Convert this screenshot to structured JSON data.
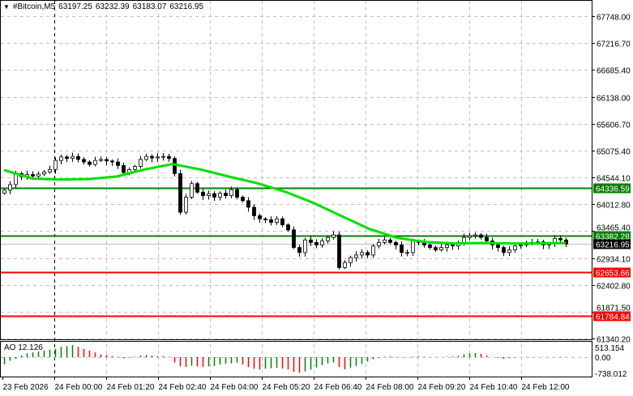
{
  "header": {
    "symbol": "#Bitcoin,M5",
    "open": "63197.25",
    "high": "63232.39",
    "low": "63183.07",
    "close": "63216.95",
    "menu_icon": "triangle-down-icon"
  },
  "indicator": {
    "label": "AO 12.126",
    "axis_labels": [
      "513.154",
      "0.00",
      "-738.012"
    ]
  },
  "colors": {
    "bull_body": "#ffffff",
    "bear_body": "#000000",
    "ma": "#00e000",
    "level_green": "#008000",
    "level_red": "#ff0000",
    "ao_up": "#008000",
    "ao_down": "#ff0000",
    "grid": "#c0c0c0"
  },
  "chart_data": {
    "type": "candlestick",
    "title": "#Bitcoin,M5",
    "ylim": [
      61340.2,
      67748.0
    ],
    "y_ticks": [
      "67748.00",
      "67216.70",
      "66685.40",
      "66138.00",
      "65606.70",
      "65075.40",
      "64544.10",
      "64012.80",
      "63465.40",
      "62934.10",
      "62402.80",
      "61871.50",
      "61340.20"
    ],
    "x_ticks": [
      "23 Feb 2026",
      "24 Feb 00:00",
      "24 Feb 01:20",
      "24 Feb 02:40",
      "24 Feb 04:00",
      "24 Feb 05:20",
      "24 Feb 06:40",
      "24 Feb 08:00",
      "24 Feb 09:20",
      "24 Feb 10:40",
      "24 Feb 12:00"
    ],
    "grid": true,
    "closes": [
      64290,
      64400,
      64620,
      64560,
      64600,
      64570,
      64610,
      64650,
      64700,
      64880,
      64950,
      64920,
      64960,
      64900,
      64850,
      64800,
      64880,
      64900,
      64870,
      64850,
      64780,
      64640,
      64700,
      64760,
      64900,
      64960,
      64930,
      64950,
      64960,
      64920,
      64620,
      63850,
      64150,
      64420,
      64250,
      64180,
      64220,
      64150,
      64230,
      64180,
      64300,
      64150,
      64080,
      63950,
      63780,
      63720,
      63700,
      63650,
      63720,
      63600,
      63500,
      63150,
      63050,
      63300,
      63250,
      63200,
      63280,
      63350,
      63400,
      62750,
      62850,
      62950,
      63000,
      63050,
      63000,
      63180,
      63250,
      63300,
      63250,
      63200,
      63050,
      63050,
      63280,
      63250,
      63200,
      63150,
      63100,
      63150,
      63200,
      63180,
      63250,
      63350,
      63380,
      63400,
      63350,
      63280,
      63200,
      63150,
      63050,
      63100,
      63180,
      63200,
      63250,
      63230,
      63260,
      63200,
      63230,
      63330,
      63300,
      63216.95
    ],
    "moving_average": [
      64690,
      64520,
      64500,
      64510,
      64560,
      64700,
      64810,
      64700,
      64560,
      64430,
      64260,
      64040,
      63780,
      63520,
      63340,
      63260,
      63230,
      63240,
      63230,
      63230,
      63240
    ],
    "levels": [
      {
        "price": 64336.59,
        "label": "64336.59",
        "color": "#008000"
      },
      {
        "price": 63382.28,
        "label": "63382.28",
        "color": "#008000"
      },
      {
        "price": 63216.95,
        "label": "63216.95",
        "color": "#000000",
        "current": true
      },
      {
        "price": 62653.66,
        "label": "62653.66",
        "color": "#ff0000"
      },
      {
        "price": 61784.84,
        "label": "61784.84",
        "color": "#ff0000"
      }
    ],
    "ao": {
      "ylim": [
        -1000,
        700
      ],
      "values": [
        -400,
        -200,
        -100,
        100,
        200,
        250,
        300,
        350,
        400,
        450,
        550,
        600,
        650,
        550,
        450,
        350,
        250,
        150,
        120,
        60,
        20,
        -60,
        -40,
        20,
        80,
        120,
        80,
        50,
        60,
        20,
        -300,
        -520,
        -550,
        -480,
        -520,
        -560,
        -520,
        -500,
        -420,
        -380,
        -350,
        -300,
        -420,
        -560,
        -650,
        -700,
        -650,
        -620,
        -600,
        -640,
        -700,
        -820,
        -880,
        -800,
        -700,
        -580,
        -450,
        -350,
        -300,
        -550,
        -680,
        -600,
        -500,
        -380,
        -250,
        -120,
        -40,
        20,
        40,
        20,
        -20,
        10,
        30,
        50,
        20,
        10,
        20,
        10,
        20,
        40,
        80,
        150,
        200,
        220,
        180,
        90,
        10,
        -40,
        -90,
        -60,
        -20,
        10,
        10,
        10,
        15,
        10,
        10,
        10,
        12,
        12.126
      ]
    }
  }
}
